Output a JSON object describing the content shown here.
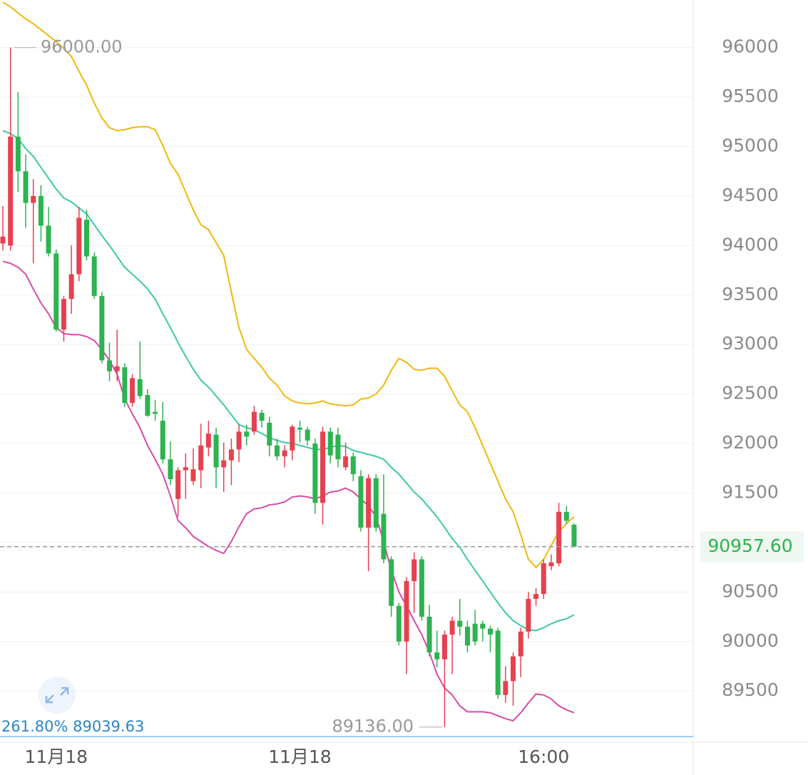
{
  "chart_data": {
    "type": "candlestick",
    "categories": [
      null,
      null,
      null,
      null,
      null,
      null,
      null,
      "11月18",
      null,
      null,
      null,
      null,
      null,
      null,
      null,
      null,
      null,
      null,
      null,
      null,
      null,
      null,
      null,
      null,
      null,
      null,
      null,
      null,
      null,
      null,
      null,
      null,
      null,
      null,
      null,
      null,
      null,
      null,
      null,
      "11月18",
      null,
      null,
      null,
      null,
      null,
      null,
      null,
      null,
      null,
      null,
      null,
      null,
      null,
      null,
      null,
      null,
      null,
      null,
      null,
      null,
      null,
      null,
      null,
      null,
      null,
      null,
      null,
      null,
      null,
      null,
      null,
      "16:00",
      null,
      null,
      null,
      null
    ],
    "open": [
      94020,
      94000,
      95100,
      94750,
      94430,
      94500,
      94200,
      93920,
      93150,
      93460,
      93710,
      94260,
      93890,
      93490,
      92840,
      92730,
      92770,
      92410,
      92650,
      92490,
      92320,
      92230,
      91840,
      91440,
      91730,
      91620,
      91730,
      91960,
      92090,
      91760,
      91830,
      91940,
      92120,
      92120,
      92310,
      92210,
      91980,
      91870,
      91930,
      92160,
      92140,
      92000,
      91400,
      92120,
      92090,
      91760,
      91870,
      91670,
      91150,
      91650,
      91290,
      90830,
      90360,
      90000,
      90610,
      90830,
      90250,
      89890,
      89820,
      90070,
      90210,
      90150,
      90180,
      90180,
      90130,
      90110,
      89460,
      89600,
      89850,
      90100,
      90430,
      90480,
      90760,
      90790,
      91310,
      91180
    ],
    "high": [
      94400,
      96000,
      95550,
      94920,
      94670,
      94610,
      94390,
      93960,
      93490,
      94000,
      94390,
      94360,
      93930,
      93530,
      93020,
      93150,
      92810,
      92700,
      93030,
      92550,
      92440,
      92420,
      92020,
      91760,
      91900,
      91950,
      92200,
      92230,
      92160,
      92010,
      92050,
      92190,
      92190,
      92380,
      92340,
      92270,
      92050,
      91980,
      92190,
      92230,
      92170,
      92050,
      92170,
      92160,
      92160,
      92010,
      91910,
      91730,
      91690,
      91690,
      91690,
      90860,
      90390,
      90650,
      90900,
      90860,
      90370,
      90110,
      90110,
      90250,
      90430,
      90210,
      90320,
      90210,
      90160,
      90140,
      89750,
      89890,
      90140,
      90500,
      90540,
      90830,
      90880,
      91400,
      91370,
      91190
    ],
    "low": [
      93950,
      93950,
      94540,
      94180,
      93820,
      94040,
      93890,
      93130,
      93030,
      93310,
      93640,
      93850,
      93460,
      92810,
      92630,
      92630,
      92370,
      92370,
      92450,
      92270,
      92230,
      91800,
      91580,
      91260,
      91440,
      91580,
      91550,
      91870,
      91550,
      91510,
      91580,
      91810,
      91980,
      92090,
      92160,
      91870,
      91830,
      91760,
      91830,
      92010,
      91980,
      91290,
      91180,
      91800,
      91760,
      91730,
      91620,
      91110,
      90710,
      91110,
      90790,
      90250,
      89960,
      89670,
      90290,
      90210,
      89850,
      89740,
      89136,
      89670,
      90060,
      89890,
      89960,
      90000,
      89890,
      89420,
      89380,
      89350,
      89640,
      90030,
      90360,
      90430,
      90720,
      90760,
      91190,
      90950
    ],
    "close": [
      94090,
      95100,
      94750,
      94430,
      94500,
      94200,
      93920,
      93150,
      93460,
      93710,
      94280,
      93890,
      93490,
      92840,
      92730,
      92780,
      92410,
      92660,
      92480,
      92280,
      92300,
      91840,
      91640,
      91730,
      91760,
      91740,
      91980,
      92100,
      91760,
      91830,
      91940,
      92120,
      92070,
      92320,
      92230,
      91980,
      91870,
      91930,
      92170,
      92140,
      92030,
      91400,
      92120,
      91880,
      91840,
      91870,
      91690,
      91150,
      91650,
      91150,
      90830,
      90360,
      90000,
      90610,
      90830,
      90250,
      89890,
      89820,
      90070,
      90210,
      90150,
      89960,
      90000,
      90130,
      90070,
      89460,
      89600,
      89850,
      90100,
      90430,
      90480,
      90790,
      90800,
      91310,
      91220,
      90958
    ],
    "up_color": "#e5414f",
    "down_color": "#2db34f",
    "overlays": [
      {
        "color": "#f0b90b",
        "values": [
          96460,
          96410,
          96350,
          96290,
          96240,
          96180,
          96120,
          96060,
          95990,
          95910,
          95760,
          95620,
          95440,
          95290,
          95190,
          95160,
          95170,
          95190,
          95200,
          95200,
          95170,
          95010,
          94830,
          94720,
          94540,
          94360,
          94210,
          94160,
          94030,
          93900,
          93530,
          93170,
          92950,
          92860,
          92770,
          92660,
          92590,
          92480,
          92430,
          92410,
          92400,
          92410,
          92430,
          92400,
          92390,
          92380,
          92390,
          92450,
          92460,
          92500,
          92590,
          92740,
          92860,
          92820,
          92750,
          92740,
          92760,
          92760,
          92680,
          92530,
          92390,
          92320,
          92160,
          91980,
          91800,
          91620,
          91440,
          91310,
          91080,
          90830,
          90750,
          90830,
          90970,
          91110,
          91190,
          91260
        ]
      },
      {
        "color": "#3cc9a5",
        "values": [
          95160,
          95130,
          95080,
          94980,
          94900,
          94790,
          94680,
          94570,
          94480,
          94440,
          94380,
          94320,
          94210,
          94100,
          94000,
          93890,
          93780,
          93710,
          93640,
          93560,
          93460,
          93310,
          93170,
          93020,
          92880,
          92750,
          92640,
          92570,
          92480,
          92390,
          92290,
          92190,
          92160,
          92140,
          92100,
          92060,
          92030,
          92010,
          92000,
          91980,
          91960,
          91940,
          91940,
          91960,
          91980,
          91970,
          91930,
          91910,
          91890,
          91870,
          91840,
          91760,
          91690,
          91600,
          91510,
          91440,
          91350,
          91260,
          91150,
          91040,
          90950,
          90830,
          90720,
          90610,
          90500,
          90390,
          90290,
          90210,
          90160,
          90120,
          90110,
          90140,
          90180,
          90210,
          90230,
          90270
        ]
      },
      {
        "color": "#d84aa9",
        "values": [
          93840,
          93820,
          93780,
          93710,
          93560,
          93420,
          93310,
          93170,
          93110,
          93100,
          93100,
          93080,
          93040,
          92950,
          92840,
          92700,
          92450,
          92300,
          92160,
          91980,
          91840,
          91690,
          91470,
          91220,
          91150,
          91060,
          91010,
          90960,
          90920,
          90890,
          91010,
          91160,
          91290,
          91340,
          91350,
          91380,
          91390,
          91410,
          91460,
          91470,
          91460,
          91440,
          91470,
          91510,
          91520,
          91550,
          91510,
          91440,
          91370,
          91260,
          91010,
          90720,
          90500,
          90360,
          90210,
          90070,
          89890,
          89670,
          89530,
          89460,
          89350,
          89290,
          89290,
          89290,
          89280,
          89250,
          89220,
          89200,
          89280,
          89380,
          89470,
          89460,
          89420,
          89350,
          89310,
          89280
        ]
      }
    ],
    "ylim": [
      88990,
      96480
    ],
    "yticks": [
      89500,
      90000,
      90500,
      91000,
      91500,
      92000,
      92500,
      93000,
      93500,
      94000,
      94500,
      95000,
      95500,
      96000
    ],
    "grid": true,
    "high_marker": {
      "value": 96000,
      "label": "96000.00"
    },
    "low_marker": {
      "value": 89136,
      "label": "89136.00"
    },
    "last_price": {
      "value": 90957.6,
      "label": "90957.60"
    },
    "fib_level": {
      "value": 89039.63,
      "label": "261.80% 89039.63"
    }
  }
}
